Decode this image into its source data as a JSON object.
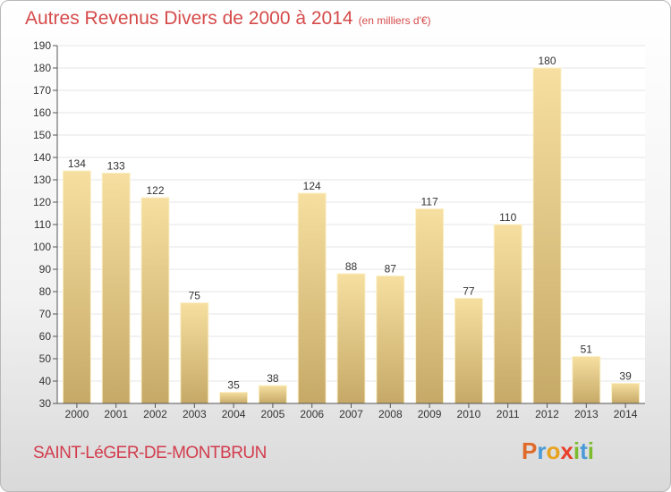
{
  "title": "Autres Revenus Divers de 2000 à 2014",
  "title_unit": "(en milliers d'€)",
  "town": "SAINT-LéGER-DE-MONTBRUN",
  "logo": {
    "letters": [
      "P",
      "r",
      "o",
      "x",
      "i",
      "t",
      "i"
    ],
    "colors": [
      "#e06a2a",
      "#4a9ad8",
      "#e8a21d",
      "#e8402a",
      "#7dbb2e",
      "#4a9ad8",
      "#7dbb2e"
    ]
  },
  "chart_data": {
    "type": "bar",
    "title": "Autres Revenus Divers de 2000 à 2014",
    "categories": [
      "2000",
      "2001",
      "2002",
      "2003",
      "2004",
      "2005",
      "2006",
      "2007",
      "2008",
      "2009",
      "2010",
      "2011",
      "2012",
      "2013",
      "2014"
    ],
    "values": [
      134,
      133,
      122,
      75,
      35,
      38,
      124,
      88,
      87,
      117,
      77,
      110,
      180,
      51,
      39
    ],
    "ylim": [
      30,
      190
    ],
    "yticks": [
      30,
      40,
      50,
      60,
      70,
      80,
      90,
      100,
      110,
      120,
      130,
      140,
      150,
      160,
      170,
      180,
      190
    ],
    "grid": true,
    "colors": {
      "bar_top": "#f6dfa0",
      "bar_bottom": "#c6a967",
      "grid": "#e6e6e6",
      "axis": "#555555"
    }
  }
}
